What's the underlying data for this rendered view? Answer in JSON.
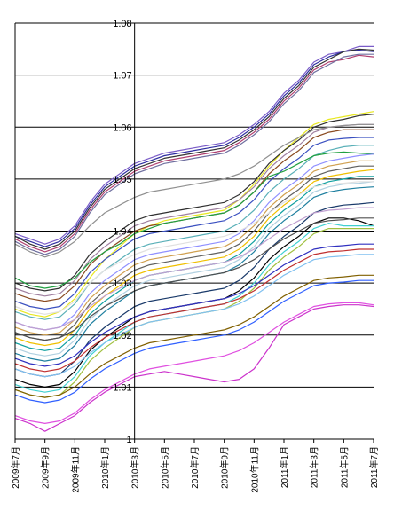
{
  "chart_data": {
    "type": "line",
    "title": "",
    "xlabel": "",
    "ylabel": "",
    "ylim": [
      1.0,
      1.08
    ],
    "y_ticks": [
      {
        "value": 1.0,
        "label": "1"
      },
      {
        "value": 1.01,
        "label": "1.01"
      },
      {
        "value": 1.02,
        "label": "1.02"
      },
      {
        "value": 1.03,
        "label": "1.03"
      },
      {
        "value": 1.04,
        "label": "1.04"
      },
      {
        "value": 1.05,
        "label": "1.05"
      },
      {
        "value": 1.06,
        "label": "1.06"
      },
      {
        "value": 1.07,
        "label": "1.07"
      },
      {
        "value": 1.08,
        "label": "1.08"
      }
    ],
    "x": [
      "2009年7月",
      "2009年8月",
      "2009年9月",
      "2009年10月",
      "2009年11月",
      "2009年12月",
      "2010年1月",
      "2010年2月",
      "2010年3月",
      "2010年4月",
      "2010年5月",
      "2010年6月",
      "2010年7月",
      "2010年8月",
      "2010年9月",
      "2010年10月",
      "2010年11月",
      "2010年12月",
      "2011年1月",
      "2011年2月",
      "2011年3月",
      "2011年4月",
      "2011年5月",
      "2011年6月",
      "2011年7月"
    ],
    "x_tick_labels": [
      "2009年7月",
      "2009年9月",
      "2009年11月",
      "2010年1月",
      "2010年3月",
      "2010年5月",
      "2010年7月",
      "2010年9月",
      "2010年11月",
      "2011年1月",
      "2011年3月",
      "2011年5月",
      "2011年7月"
    ],
    "grid": {
      "horizontal": true,
      "vertical": false
    },
    "legend": "none",
    "series": [
      {
        "color": "#7a5cc8",
        "values": [
          1.0395,
          1.0385,
          1.0375,
          1.0385,
          1.041,
          1.0455,
          1.049,
          1.051,
          1.053,
          1.054,
          1.055,
          1.0555,
          1.056,
          1.0565,
          1.057,
          1.0585,
          1.0605,
          1.063,
          1.0665,
          1.069,
          1.0725,
          1.074,
          1.0745,
          1.0755,
          1.0755
        ]
      },
      {
        "color": "#2d2da0",
        "values": [
          1.039,
          1.038,
          1.037,
          1.038,
          1.0405,
          1.045,
          1.0485,
          1.0505,
          1.0525,
          1.0535,
          1.0545,
          1.055,
          1.0555,
          1.056,
          1.0565,
          1.058,
          1.06,
          1.0625,
          1.066,
          1.0685,
          1.072,
          1.0735,
          1.0745,
          1.0748,
          1.0745
        ]
      },
      {
        "color": "#333333",
        "values": [
          1.039,
          1.0375,
          1.0365,
          1.0375,
          1.04,
          1.0445,
          1.048,
          1.05,
          1.052,
          1.053,
          1.054,
          1.0545,
          1.055,
          1.0555,
          1.056,
          1.0575,
          1.0595,
          1.062,
          1.0655,
          1.068,
          1.0715,
          1.073,
          1.0745,
          1.075,
          1.0748
        ]
      },
      {
        "color": "#b04070",
        "values": [
          1.0385,
          1.037,
          1.036,
          1.037,
          1.0395,
          1.044,
          1.0475,
          1.0495,
          1.0515,
          1.0525,
          1.0535,
          1.054,
          1.0545,
          1.055,
          1.0555,
          1.057,
          1.059,
          1.0615,
          1.065,
          1.0675,
          1.071,
          1.0725,
          1.073,
          1.0738,
          1.0735
        ]
      },
      {
        "color": "#7070a0",
        "values": [
          1.038,
          1.0365,
          1.0355,
          1.0365,
          1.039,
          1.0435,
          1.047,
          1.049,
          1.051,
          1.052,
          1.053,
          1.0535,
          1.054,
          1.0545,
          1.055,
          1.0565,
          1.0585,
          1.061,
          1.0645,
          1.067,
          1.0705,
          1.072,
          1.0735,
          1.074,
          1.074
        ]
      },
      {
        "color": "#e8e820",
        "values": [
          1.025,
          1.024,
          1.0235,
          1.0245,
          1.027,
          1.031,
          1.0345,
          1.037,
          1.0395,
          1.041,
          1.042,
          1.0425,
          1.043,
          1.0435,
          1.044,
          1.046,
          1.049,
          1.0525,
          1.0555,
          1.058,
          1.0605,
          1.0615,
          1.062,
          1.0625,
          1.063
        ]
      },
      {
        "color": "#303030",
        "values": [
          1.03,
          1.029,
          1.0285,
          1.029,
          1.0315,
          1.0355,
          1.038,
          1.04,
          1.042,
          1.043,
          1.0435,
          1.044,
          1.0445,
          1.045,
          1.0455,
          1.047,
          1.0495,
          1.053,
          1.0555,
          1.0575,
          1.06,
          1.061,
          1.0615,
          1.0622,
          1.0625
        ]
      },
      {
        "color": "#a080a0",
        "values": [
          1.029,
          1.028,
          1.0275,
          1.028,
          1.0305,
          1.0345,
          1.037,
          1.039,
          1.041,
          1.042,
          1.0425,
          1.043,
          1.0435,
          1.044,
          1.0445,
          1.046,
          1.0485,
          1.052,
          1.0545,
          1.0565,
          1.059,
          1.06,
          1.0603,
          1.0605,
          1.0605
        ]
      },
      {
        "color": "#8a4a20",
        "values": [
          1.028,
          1.027,
          1.0265,
          1.027,
          1.0295,
          1.0335,
          1.036,
          1.038,
          1.04,
          1.041,
          1.0415,
          1.042,
          1.0425,
          1.043,
          1.0435,
          1.045,
          1.0475,
          1.051,
          1.0535,
          1.0555,
          1.058,
          1.059,
          1.0595,
          1.0595,
          1.0595
        ]
      },
      {
        "color": "#3a50c0",
        "values": [
          1.0265,
          1.0255,
          1.025,
          1.0255,
          1.028,
          1.032,
          1.0345,
          1.0365,
          1.0385,
          1.0395,
          1.04,
          1.0405,
          1.041,
          1.0415,
          1.042,
          1.0435,
          1.046,
          1.0495,
          1.052,
          1.054,
          1.0565,
          1.0575,
          1.0578,
          1.058,
          1.058
        ]
      },
      {
        "color": "#5ab0b8",
        "values": [
          1.0245,
          1.0235,
          1.023,
          1.0235,
          1.026,
          1.03,
          1.0325,
          1.0345,
          1.0365,
          1.0375,
          1.038,
          1.0385,
          1.039,
          1.0395,
          1.04,
          1.0415,
          1.044,
          1.0475,
          1.05,
          1.052,
          1.0545,
          1.0555,
          1.0562,
          1.0565,
          1.0565
        ]
      },
      {
        "color": "#20a040",
        "values": [
          1.031,
          1.0295,
          1.029,
          1.0295,
          1.031,
          1.034,
          1.036,
          1.0375,
          1.0395,
          1.0405,
          1.0415,
          1.042,
          1.0425,
          1.043,
          1.0435,
          1.045,
          1.0475,
          1.0505,
          1.0515,
          1.053,
          1.0545,
          1.055,
          1.0552,
          1.055,
          1.0548
        ]
      },
      {
        "color": "#9090ff",
        "values": [
          1.0225,
          1.0215,
          1.021,
          1.0215,
          1.024,
          1.028,
          1.0305,
          1.0325,
          1.0345,
          1.0355,
          1.036,
          1.0365,
          1.037,
          1.0375,
          1.038,
          1.0395,
          1.042,
          1.0455,
          1.048,
          1.05,
          1.0525,
          1.0535,
          1.054,
          1.0545,
          1.0548
        ]
      },
      {
        "color": "#d0a050",
        "values": [
          1.0215,
          1.0205,
          1.02,
          1.0205,
          1.023,
          1.027,
          1.0295,
          1.0315,
          1.0335,
          1.0345,
          1.035,
          1.0355,
          1.036,
          1.0365,
          1.037,
          1.0385,
          1.041,
          1.0445,
          1.047,
          1.049,
          1.0515,
          1.0525,
          1.053,
          1.0535,
          1.0535
        ]
      },
      {
        "color": "#606060",
        "values": [
          1.0205,
          1.0195,
          1.019,
          1.0195,
          1.022,
          1.026,
          1.0285,
          1.0305,
          1.0325,
          1.0335,
          1.034,
          1.0345,
          1.035,
          1.0355,
          1.036,
          1.0375,
          1.04,
          1.0435,
          1.046,
          1.048,
          1.0505,
          1.0515,
          1.052,
          1.0525,
          1.0525
        ]
      },
      {
        "color": "#f0c000",
        "values": [
          1.0195,
          1.0185,
          1.018,
          1.0185,
          1.021,
          1.025,
          1.0275,
          1.0295,
          1.0315,
          1.0325,
          1.033,
          1.0335,
          1.034,
          1.0345,
          1.035,
          1.0365,
          1.039,
          1.0425,
          1.045,
          1.047,
          1.0495,
          1.0505,
          1.051,
          1.0515,
          1.0518
        ]
      },
      {
        "color": "#10a0a0",
        "values": [
          1.0185,
          1.0175,
          1.017,
          1.0175,
          1.02,
          1.024,
          1.0265,
          1.0285,
          1.0305,
          1.0315,
          1.032,
          1.0325,
          1.033,
          1.0335,
          1.034,
          1.0355,
          1.038,
          1.0415,
          1.044,
          1.046,
          1.0485,
          1.0495,
          1.05,
          1.0505,
          1.0505
        ]
      },
      {
        "color": "#b0d0e0",
        "values": [
          1.0175,
          1.0165,
          1.016,
          1.0165,
          1.019,
          1.023,
          1.0255,
          1.0275,
          1.0295,
          1.0305,
          1.031,
          1.0315,
          1.032,
          1.0325,
          1.033,
          1.0345,
          1.037,
          1.0405,
          1.043,
          1.045,
          1.0475,
          1.0485,
          1.049,
          1.0492,
          1.0495
        ]
      },
      {
        "color": "#2080a0",
        "values": [
          1.0165,
          1.0155,
          1.015,
          1.0155,
          1.018,
          1.022,
          1.0245,
          1.0265,
          1.0285,
          1.0295,
          1.03,
          1.0305,
          1.031,
          1.0315,
          1.032,
          1.0335,
          1.036,
          1.0395,
          1.042,
          1.044,
          1.0465,
          1.0475,
          1.048,
          1.0483,
          1.0485
        ]
      },
      {
        "color": "#1a3a6a",
        "values": [
          1.0135,
          1.0125,
          1.012,
          1.0125,
          1.015,
          1.019,
          1.0215,
          1.0235,
          1.0255,
          1.0265,
          1.027,
          1.0275,
          1.028,
          1.0285,
          1.029,
          1.0305,
          1.033,
          1.0365,
          1.039,
          1.041,
          1.0435,
          1.0445,
          1.045,
          1.0452,
          1.0455
        ]
      },
      {
        "color": "#e0e0e0",
        "values": [
          1.0255,
          1.0245,
          1.024,
          1.0245,
          1.0265,
          1.03,
          1.0325,
          1.034,
          1.0355,
          1.0365,
          1.037,
          1.0375,
          1.038,
          1.0385,
          1.039,
          1.04,
          1.0415,
          1.0435,
          1.0455,
          1.047,
          1.0485,
          1.049,
          1.0492,
          1.0495,
          1.0495
        ]
      },
      {
        "color": "#000000",
        "values": [
          1.0115,
          1.0105,
          1.01,
          1.0105,
          1.013,
          1.017,
          1.0195,
          1.0215,
          1.0235,
          1.0245,
          1.025,
          1.0255,
          1.026,
          1.0265,
          1.027,
          1.0285,
          1.031,
          1.0345,
          1.037,
          1.039,
          1.0415,
          1.0425,
          1.0425,
          1.042,
          1.041
        ]
      },
      {
        "color": "#40d0d0",
        "values": [
          1.0105,
          1.0095,
          1.009,
          1.0095,
          1.012,
          1.016,
          1.0185,
          1.0205,
          1.0225,
          1.0235,
          1.024,
          1.0245,
          1.025,
          1.0255,
          1.026,
          1.0275,
          1.03,
          1.0335,
          1.036,
          1.038,
          1.0405,
          1.0415,
          1.041,
          1.041,
          1.041
        ]
      },
      {
        "color": "#a0c040",
        "values": [
          1.0095,
          1.0085,
          1.008,
          1.0085,
          1.011,
          1.015,
          1.0175,
          1.0195,
          1.0215,
          1.0225,
          1.023,
          1.0235,
          1.024,
          1.0245,
          1.025,
          1.0265,
          1.029,
          1.0325,
          1.035,
          1.037,
          1.0395,
          1.0405,
          1.0405,
          1.0405,
          1.0405
        ]
      },
      {
        "color": "#c0a0d0",
        "values": [
          1.0225,
          1.0215,
          1.021,
          1.0215,
          1.023,
          1.0255,
          1.0275,
          1.029,
          1.0305,
          1.0315,
          1.032,
          1.0325,
          1.033,
          1.0335,
          1.034,
          1.035,
          1.0365,
          1.0385,
          1.0405,
          1.042,
          1.0435,
          1.044,
          1.0442,
          1.0445,
          1.0445
        ]
      },
      {
        "color": "#505050",
        "values": [
          1.0205,
          1.0195,
          1.019,
          1.0195,
          1.021,
          1.0235,
          1.0255,
          1.027,
          1.0285,
          1.0295,
          1.03,
          1.0305,
          1.031,
          1.0315,
          1.032,
          1.033,
          1.0345,
          1.0365,
          1.0385,
          1.04,
          1.0415,
          1.042,
          1.0422,
          1.0425,
          1.0425
        ]
      },
      {
        "color": "#3030c0",
        "values": [
          1.0155,
          1.0145,
          1.014,
          1.0145,
          1.016,
          1.0185,
          1.0205,
          1.022,
          1.0235,
          1.0245,
          1.025,
          1.0255,
          1.026,
          1.0265,
          1.027,
          1.028,
          1.0295,
          1.0315,
          1.0335,
          1.035,
          1.0365,
          1.037,
          1.0372,
          1.0375,
          1.0375
        ]
      },
      {
        "color": "#c03030",
        "values": [
          1.0145,
          1.0135,
          1.013,
          1.0135,
          1.015,
          1.0175,
          1.0195,
          1.021,
          1.0225,
          1.0235,
          1.024,
          1.0245,
          1.025,
          1.0255,
          1.026,
          1.027,
          1.0285,
          1.0305,
          1.0325,
          1.034,
          1.0355,
          1.036,
          1.0362,
          1.0365,
          1.0365
        ]
      },
      {
        "color": "#80c0f0",
        "values": [
          1.0135,
          1.0125,
          1.012,
          1.0125,
          1.014,
          1.0165,
          1.0185,
          1.02,
          1.0215,
          1.0225,
          1.023,
          1.0235,
          1.024,
          1.0245,
          1.025,
          1.026,
          1.0275,
          1.0295,
          1.0315,
          1.033,
          1.0345,
          1.035,
          1.0352,
          1.0355,
          1.0355
        ]
      },
      {
        "color": "#806000",
        "values": [
          1.0095,
          1.0085,
          1.008,
          1.0085,
          1.01,
          1.0125,
          1.0145,
          1.016,
          1.0175,
          1.0185,
          1.019,
          1.0195,
          1.02,
          1.0205,
          1.021,
          1.022,
          1.0235,
          1.0255,
          1.0275,
          1.029,
          1.0305,
          1.031,
          1.0312,
          1.0315,
          1.0315
        ]
      },
      {
        "color": "#3060ff",
        "values": [
          1.0085,
          1.0075,
          1.007,
          1.0075,
          1.009,
          1.0115,
          1.0135,
          1.015,
          1.0165,
          1.0175,
          1.018,
          1.0185,
          1.019,
          1.0195,
          1.02,
          1.021,
          1.0225,
          1.0245,
          1.0265,
          1.028,
          1.0295,
          1.03,
          1.0302,
          1.0305,
          1.0305
        ]
      },
      {
        "color": "#e050e0",
        "values": [
          1.0045,
          1.0035,
          1.003,
          1.0035,
          1.005,
          1.0075,
          1.0095,
          1.011,
          1.0125,
          1.0135,
          1.014,
          1.0145,
          1.015,
          1.0155,
          1.016,
          1.017,
          1.0185,
          1.0205,
          1.0225,
          1.024,
          1.0255,
          1.026,
          1.0262,
          1.0262,
          1.0258
        ]
      },
      {
        "color": "#cc33cc",
        "values": [
          1.004,
          1.003,
          1.0015,
          1.003,
          1.0045,
          1.007,
          1.009,
          1.0105,
          1.012,
          1.0125,
          1.013,
          1.0125,
          1.012,
          1.0115,
          1.011,
          1.0115,
          1.0135,
          1.0175,
          1.022,
          1.0235,
          1.025,
          1.0255,
          1.0258,
          1.0258,
          1.0255
        ]
      },
      {
        "color": "#909090",
        "values": [
          1.0375,
          1.036,
          1.035,
          1.036,
          1.038,
          1.041,
          1.0435,
          1.045,
          1.0465,
          1.0475,
          1.048,
          1.0485,
          1.049,
          1.0495,
          1.05,
          1.051,
          1.0525,
          1.0545,
          1.0565,
          1.058,
          1.0595,
          1.06,
          1.0603,
          1.0605,
          1.0605
        ]
      }
    ]
  }
}
